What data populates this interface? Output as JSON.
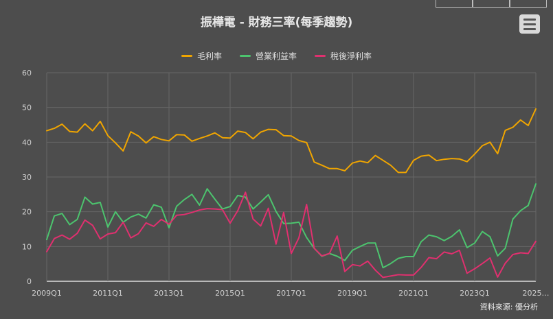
{
  "header": {
    "title": "振樺電 - 財務三率(每季趨勢)",
    "menu_icon": "hamburger-menu-icon"
  },
  "source": "資料來源: 優分析",
  "colors": {
    "background": "#4d4d4d",
    "gross": "#f0a500",
    "operating": "#4cc46e",
    "net": "#e0306f",
    "grid": "#666666",
    "axis": "#cfcfcf"
  },
  "chart_data": {
    "type": "line",
    "title": "振樺電 - 財務三率(每季趨勢)",
    "ylim": [
      0,
      60
    ],
    "y_ticks": [
      0,
      10,
      20,
      30,
      40,
      50,
      60
    ],
    "x_tick_labels": [
      "2009Q1",
      "2011Q1",
      "2013Q1",
      "2015Q1",
      "2017Q1",
      "2019Q1",
      "2021Q1",
      "2023Q1",
      "2025…"
    ],
    "legend_position": "top-center",
    "grid": true,
    "x": [
      "2009Q1",
      "2009Q2",
      "2009Q3",
      "2009Q4",
      "2010Q1",
      "2010Q2",
      "2010Q3",
      "2010Q4",
      "2011Q1",
      "2011Q2",
      "2011Q3",
      "2011Q4",
      "2012Q1",
      "2012Q2",
      "2012Q3",
      "2012Q4",
      "2013Q1",
      "2013Q2",
      "2013Q3",
      "2013Q4",
      "2014Q1",
      "2014Q2",
      "2014Q3",
      "2014Q4",
      "2015Q1",
      "2015Q2",
      "2015Q3",
      "2015Q4",
      "2016Q1",
      "2016Q2",
      "2016Q3",
      "2016Q4",
      "2017Q1",
      "2017Q2",
      "2017Q3",
      "2017Q4",
      "2018Q1",
      "2018Q2",
      "2018Q3",
      "2018Q4",
      "2019Q1",
      "2019Q2",
      "2019Q3",
      "2019Q4",
      "2020Q1",
      "2020Q2",
      "2020Q3",
      "2020Q4",
      "2021Q1",
      "2021Q2",
      "2021Q3",
      "2021Q4",
      "2022Q1",
      "2022Q2",
      "2022Q3",
      "2022Q4",
      "2023Q1",
      "2023Q2",
      "2023Q3",
      "2023Q4",
      "2024Q1",
      "2024Q2",
      "2024Q3",
      "2024Q4",
      "2025Q1"
    ],
    "series": [
      {
        "name": "毛利率",
        "color": "#f0a500",
        "values": [
          43.3,
          44.0,
          45.2,
          43.1,
          42.9,
          45.3,
          43.3,
          46.0,
          41.9,
          39.8,
          37.5,
          43.0,
          41.8,
          39.8,
          41.6,
          40.8,
          40.4,
          42.2,
          42.1,
          40.3,
          41.1,
          41.8,
          42.7,
          41.3,
          41.2,
          43.2,
          42.8,
          41.0,
          42.9,
          43.7,
          43.6,
          41.9,
          41.8,
          40.5,
          39.9,
          34.3,
          33.4,
          32.4,
          32.4,
          31.8,
          34.0,
          34.6,
          34.1,
          36.2,
          34.8,
          33.4,
          31.3,
          31.3,
          34.8,
          36.0,
          36.3,
          34.7,
          35.1,
          35.3,
          35.2,
          34.4,
          36.6,
          39.0,
          40.0,
          36.7,
          43.4,
          44.3,
          46.4,
          44.8,
          49.6
        ]
      },
      {
        "name": "營業利益率",
        "color": "#4cc46e",
        "values": [
          12.0,
          18.8,
          19.5,
          16.3,
          17.8,
          24.2,
          22.2,
          22.7,
          15.6,
          20.0,
          17.0,
          18.5,
          19.3,
          18.2,
          22.0,
          21.3,
          15.4,
          21.6,
          23.5,
          25.0,
          21.9,
          26.6,
          23.6,
          20.8,
          21.5,
          24.7,
          24.2,
          20.8,
          22.8,
          24.9,
          20.1,
          16.6,
          16.7,
          17.0,
          12.6,
          9.5,
          7.2,
          8.0,
          7.2,
          6.0,
          8.9,
          10.0,
          11.0,
          11.0,
          3.9,
          5.1,
          6.6,
          7.1,
          7.1,
          11.4,
          13.3,
          12.8,
          11.7,
          12.9,
          14.8,
          9.7,
          11.0,
          14.3,
          12.8,
          7.3,
          9.5,
          17.9,
          20.3,
          21.8,
          28.0
        ]
      },
      {
        "name": "稅後淨利率",
        "color": "#e0306f",
        "values": [
          8.5,
          12.3,
          13.3,
          12.1,
          13.8,
          17.6,
          16.1,
          12.2,
          13.6,
          14.0,
          17.0,
          12.5,
          13.7,
          16.8,
          15.8,
          17.8,
          16.4,
          19.0,
          19.2,
          19.8,
          20.5,
          20.9,
          20.8,
          20.6,
          16.7,
          20.3,
          25.6,
          17.9,
          15.9,
          21.0,
          10.7,
          19.8,
          8.0,
          12.5,
          22.1,
          9.5,
          7.3,
          8.0,
          13.0,
          2.8,
          4.8,
          4.4,
          5.8,
          3.2,
          1.1,
          1.5,
          1.9,
          1.8,
          1.8,
          4.0,
          6.8,
          6.5,
          8.4,
          7.9,
          8.9,
          2.3,
          3.6,
          5.1,
          6.7,
          1.2,
          5.2,
          7.7,
          8.2,
          8.0,
          11.5
        ]
      }
    ]
  }
}
